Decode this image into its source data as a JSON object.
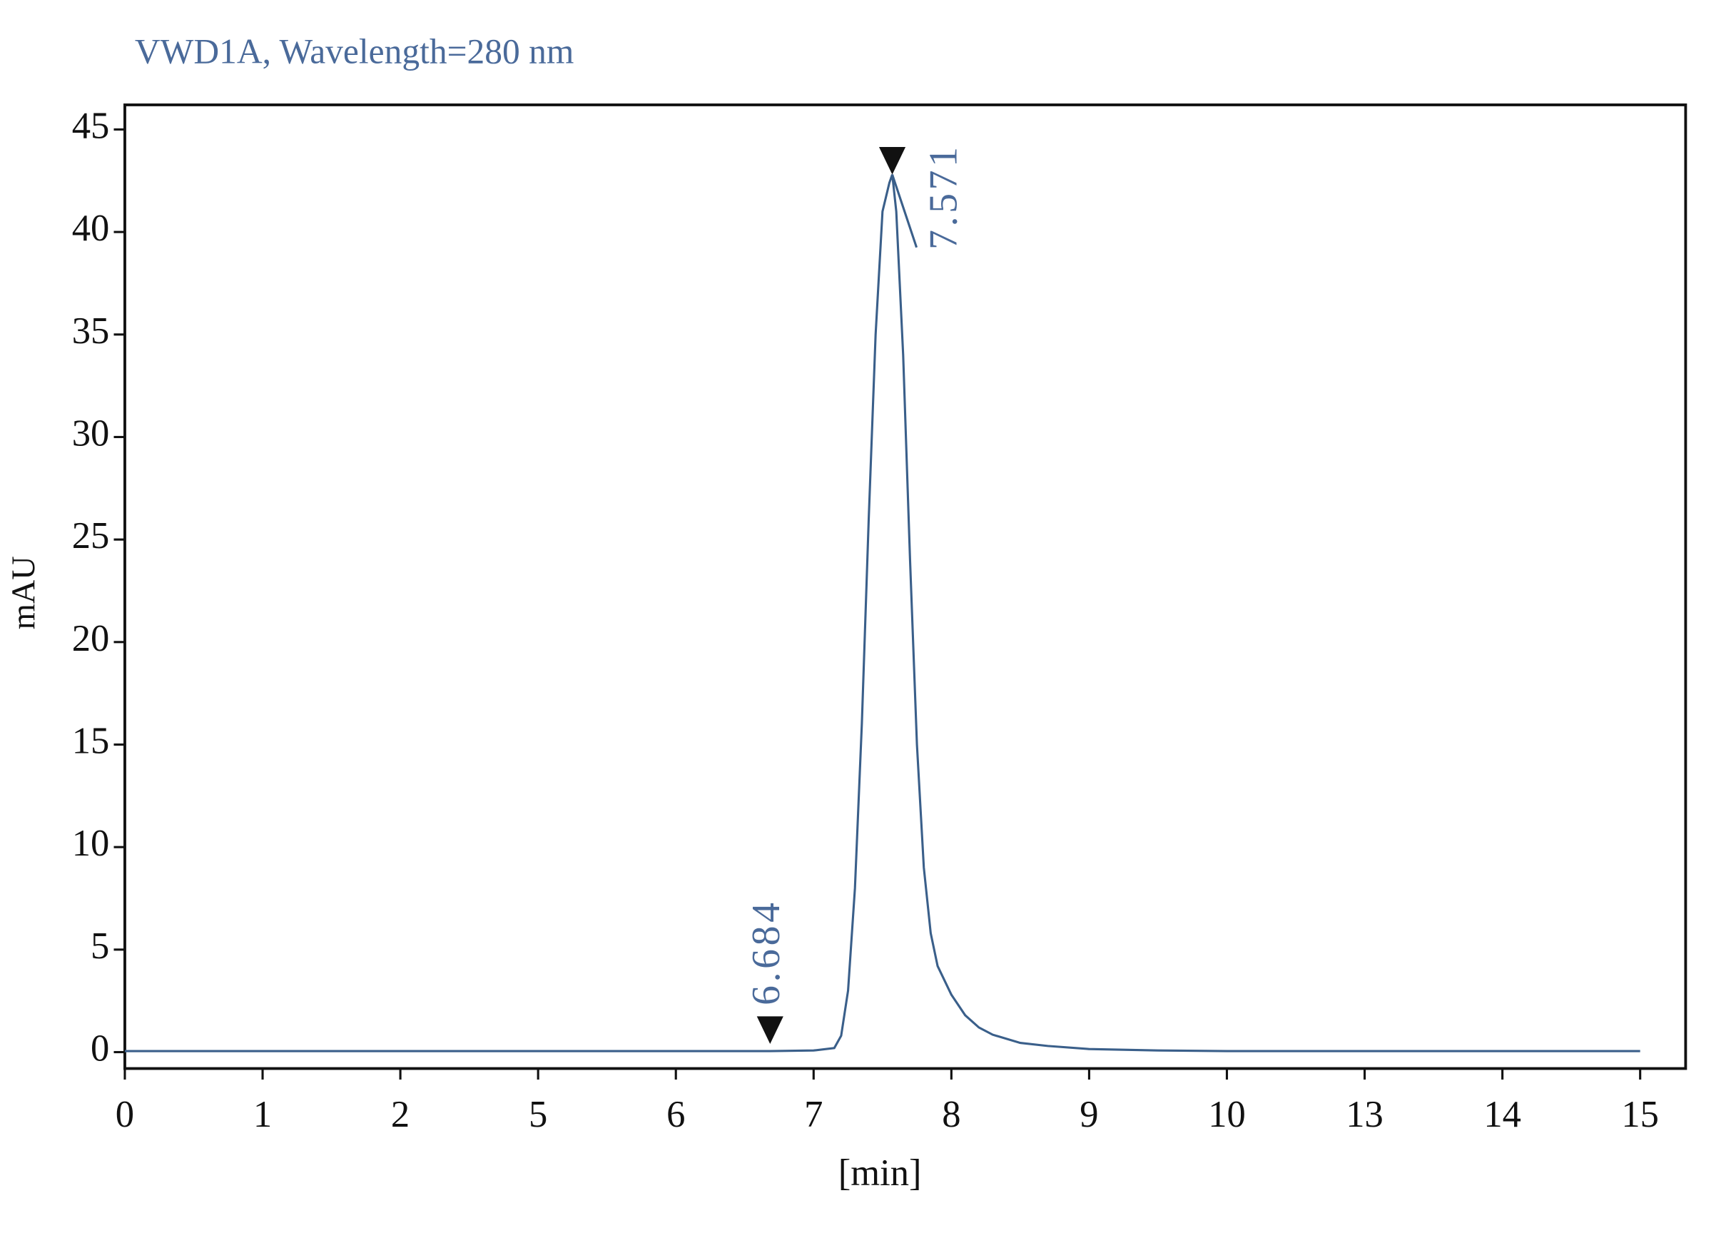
{
  "chart_data": {
    "type": "line",
    "title": "VWD1A, Wavelength=280 nm",
    "x_label": "[min]",
    "y_label": "mAU",
    "x": [
      0,
      6.684,
      7.0,
      7.15,
      7.2,
      7.25,
      7.3,
      7.35,
      7.4,
      7.45,
      7.5,
      7.55,
      7.571,
      7.6,
      7.65,
      7.7,
      7.75,
      7.8,
      7.85,
      7.9,
      8.0,
      8.1,
      8.2,
      8.3,
      8.5,
      8.7,
      9.0,
      9.5,
      10,
      13,
      15
    ],
    "series": [
      {
        "color": "#3a5f8a",
        "values": [
          0.05,
          0.05,
          0.08,
          0.2,
          0.8,
          3,
          8,
          16,
          26,
          35,
          41,
          42.4,
          42.8,
          41,
          34,
          24,
          15,
          9,
          5.8,
          4.2,
          2.8,
          1.8,
          1.2,
          0.85,
          0.45,
          0.3,
          0.15,
          0.08,
          0.05,
          0.05,
          0.05
        ]
      }
    ],
    "xlim": [
      0,
      15.33
    ],
    "xticks": [
      0,
      1,
      2,
      5,
      6,
      7,
      8,
      9,
      10,
      13,
      14,
      15
    ],
    "ylim": [
      -0.8,
      46.2
    ],
    "yticks": [
      0,
      5,
      10,
      15,
      20,
      25,
      30,
      35,
      40,
      45
    ],
    "annotations": [
      {
        "text": "7.571",
        "x": 7.571,
        "y": 42.8
      },
      {
        "text": "6.684",
        "x": 6.684,
        "y": 0.4
      }
    ]
  }
}
